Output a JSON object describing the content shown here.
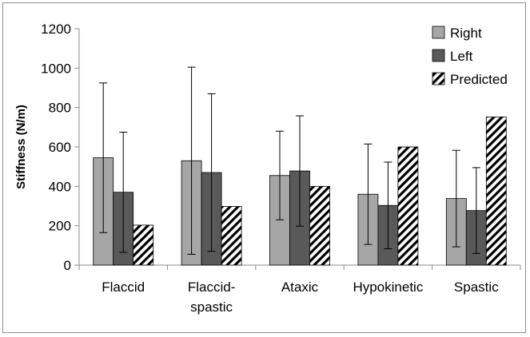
{
  "chart_data": {
    "type": "bar",
    "title": "",
    "xlabel": "",
    "ylabel": "Stiffness (N/m)",
    "ylim": [
      0,
      1200
    ],
    "yticks": [
      0,
      200,
      400,
      600,
      800,
      1000,
      1200
    ],
    "categories": [
      [
        "Flaccid"
      ],
      [
        "Flaccid-",
        "spastic"
      ],
      [
        "Ataxic"
      ],
      [
        "Hypokinetic"
      ],
      [
        "Spastic"
      ]
    ],
    "series": [
      {
        "name": "Right",
        "style": "solid",
        "color": "#a6a6a6",
        "values": [
          545,
          530,
          455,
          360,
          338
        ],
        "error": [
          380,
          475,
          225,
          255,
          245
        ]
      },
      {
        "name": "Left",
        "style": "solid",
        "color": "#595959",
        "values": [
          370,
          470,
          478,
          303,
          277
        ],
        "error": [
          305,
          400,
          280,
          220,
          218
        ]
      },
      {
        "name": "Predicted",
        "style": "hatched",
        "color": "#000000",
        "values": [
          203,
          298,
          400,
          600,
          752
        ],
        "error": null
      }
    ],
    "grid": false,
    "legend_position": "top-right"
  }
}
